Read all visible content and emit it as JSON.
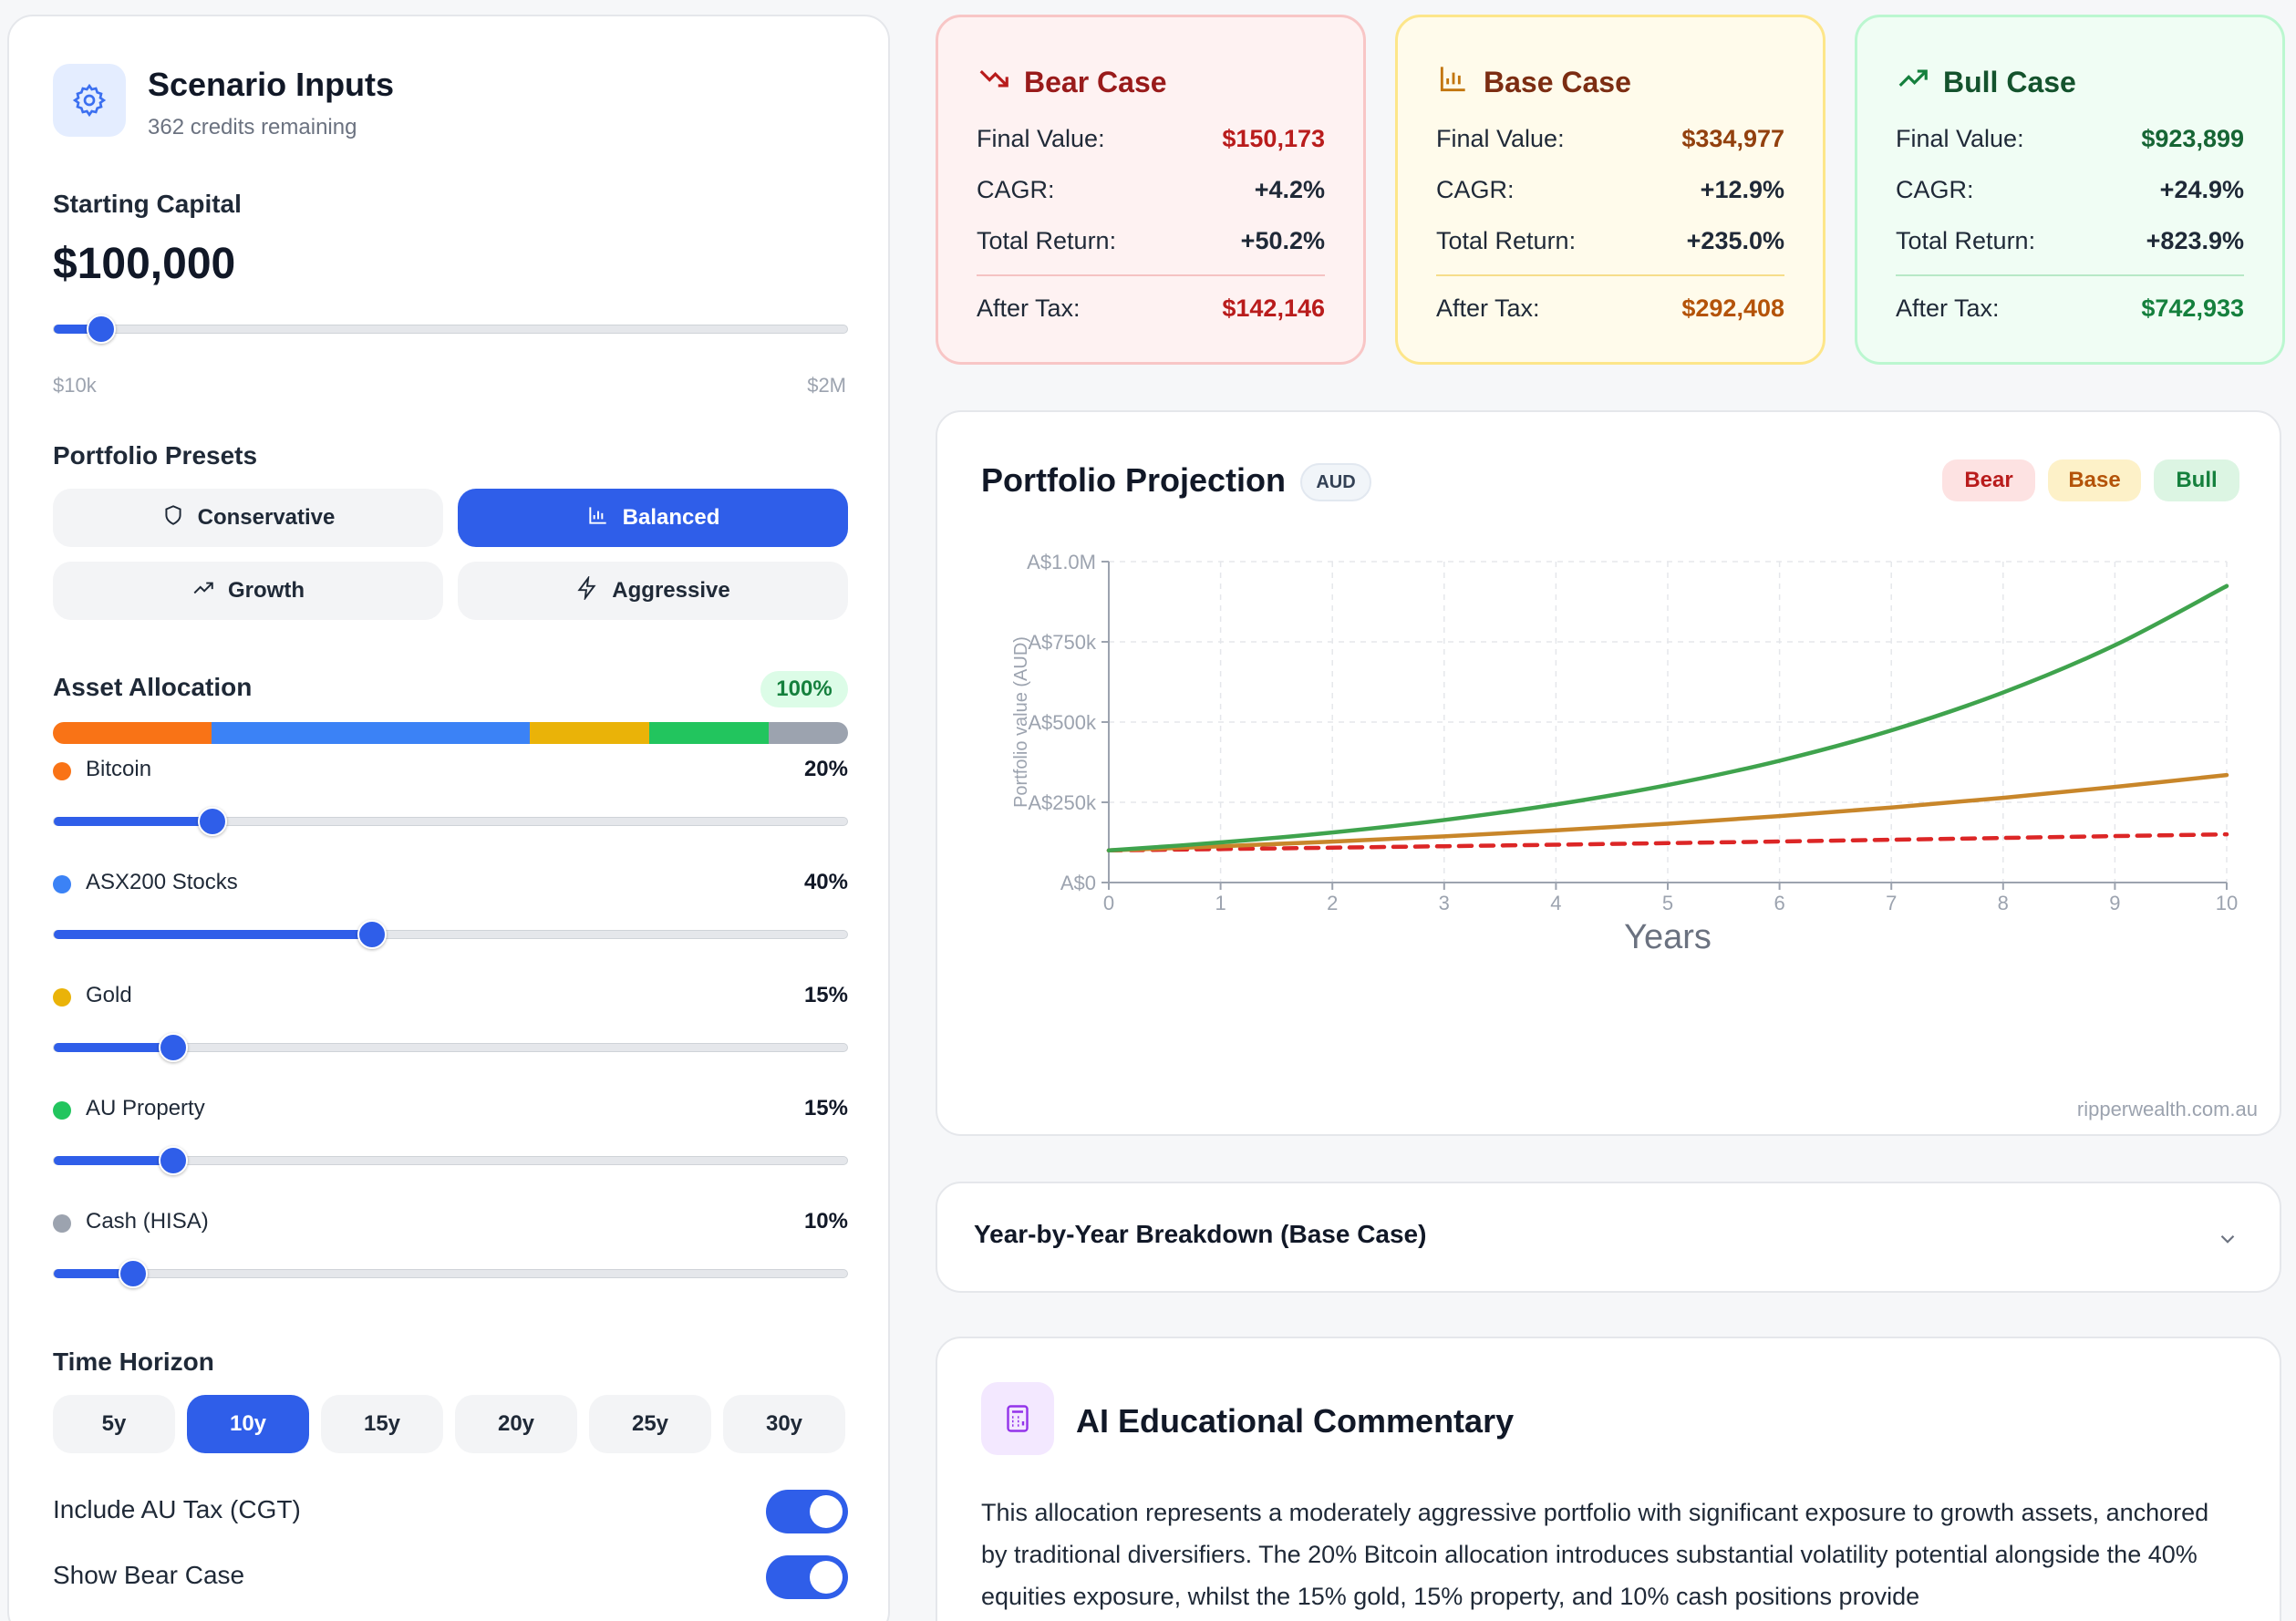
{
  "inputs": {
    "title": "Scenario Inputs",
    "credits": "362 credits remaining",
    "starting_capital_label": "Starting Capital",
    "starting_capital_value": "$100,000",
    "capital_min": "$10k",
    "capital_max": "$2M",
    "capital_slider_fraction": 0.06,
    "presets_label": "Portfolio Presets",
    "presets": [
      {
        "label": "Conservative",
        "icon": "shield-icon",
        "active": false
      },
      {
        "label": "Balanced",
        "icon": "bar-chart-icon",
        "active": true
      },
      {
        "label": "Growth",
        "icon": "trending-up-icon",
        "active": false
      },
      {
        "label": "Aggressive",
        "icon": "lightning-icon",
        "active": false
      }
    ],
    "allocation_label": "Asset Allocation",
    "allocation_total": "100%",
    "assets": [
      {
        "name": "Bitcoin",
        "pct_label": "20%",
        "pct": 20,
        "color": "#f97316"
      },
      {
        "name": "ASX200 Stocks",
        "pct_label": "40%",
        "pct": 40,
        "color": "#3b82f6"
      },
      {
        "name": "Gold",
        "pct_label": "15%",
        "pct": 15,
        "color": "#eab308"
      },
      {
        "name": "AU Property",
        "pct_label": "15%",
        "pct": 15,
        "color": "#22c55e"
      },
      {
        "name": "Cash (HISA)",
        "pct_label": "10%",
        "pct": 10,
        "color": "#9ca3af"
      }
    ],
    "horizon_label": "Time Horizon",
    "horizons": [
      "5y",
      "10y",
      "15y",
      "20y",
      "25y",
      "30y"
    ],
    "horizon_active": "10y",
    "toggle_tax_label": "Include AU Tax (CGT)",
    "toggle_tax_on": true,
    "toggle_bear_label": "Show Bear Case",
    "toggle_bear_on": true
  },
  "cases": {
    "bear": {
      "title": "Bear Case",
      "final_label": "Final Value:",
      "final": "$150,173",
      "cagr_label": "CAGR:",
      "cagr": "+4.2%",
      "total_label": "Total Return:",
      "total": "+50.2%",
      "tax_label": "After Tax:",
      "tax": "$142,146",
      "accent": "#b91c1c",
      "icon": "trending-down-icon"
    },
    "base": {
      "title": "Base Case",
      "final_label": "Final Value:",
      "final": "$334,977",
      "cagr_label": "CAGR:",
      "cagr": "+12.9%",
      "total_label": "Total Return:",
      "total": "+235.0%",
      "tax_label": "After Tax:",
      "tax": "$292,408",
      "accent": "#b45309",
      "icon": "bar-chart-icon"
    },
    "bull": {
      "title": "Bull Case",
      "final_label": "Final Value:",
      "final": "$923,899",
      "cagr_label": "CAGR:",
      "cagr": "+24.9%",
      "total_label": "Total Return:",
      "total": "+823.9%",
      "tax_label": "After Tax:",
      "tax": "$742,933",
      "accent": "#15803d",
      "icon": "trending-up-icon"
    }
  },
  "chart_panel": {
    "title": "Portfolio Projection",
    "currency_badge": "AUD",
    "legend": [
      "Bear",
      "Base",
      "Bull"
    ],
    "watermark": "ripperwealth.com.au"
  },
  "chart_data": {
    "type": "line",
    "xlabel": "Years",
    "ylabel": "Portfolio value (AUD)",
    "x": [
      0,
      1,
      2,
      3,
      4,
      5,
      6,
      7,
      8,
      9,
      10
    ],
    "xlim": [
      0,
      10
    ],
    "ylim": [
      0,
      1000000
    ],
    "y_ticks": [
      "A$0",
      "A$250k",
      "A$500k",
      "A$750k",
      "A$1.0M"
    ],
    "y_tick_values": [
      0,
      250000,
      500000,
      750000,
      1000000
    ],
    "grid": true,
    "series": [
      {
        "name": "Bear",
        "color": "#dc2626",
        "dashed": true,
        "values": [
          100000,
          104200,
          108600,
          113100,
          117800,
          122800,
          127900,
          133300,
          138900,
          144700,
          150173
        ]
      },
      {
        "name": "Base",
        "color": "#c8862a",
        "dashed": false,
        "values": [
          100000,
          112900,
          127500,
          143900,
          162500,
          183400,
          207100,
          233800,
          264000,
          298000,
          334977
        ]
      },
      {
        "name": "Bull",
        "color": "#3fa34d",
        "dashed": false,
        "values": [
          100000,
          124900,
          156000,
          194800,
          243300,
          303900,
          379600,
          474100,
          592100,
          739500,
          923899
        ]
      }
    ]
  },
  "breakdown": {
    "title": "Year-by-Year Breakdown (Base Case)"
  },
  "commentary": {
    "title": "AI Educational Commentary",
    "text": "This allocation represents a moderately aggressive portfolio with significant exposure to growth assets, anchored by traditional diversifiers. The 20% Bitcoin allocation introduces substantial volatility potential alongside the 40% equities exposure, whilst the 15% gold, 15% property, and 10% cash positions provide"
  }
}
